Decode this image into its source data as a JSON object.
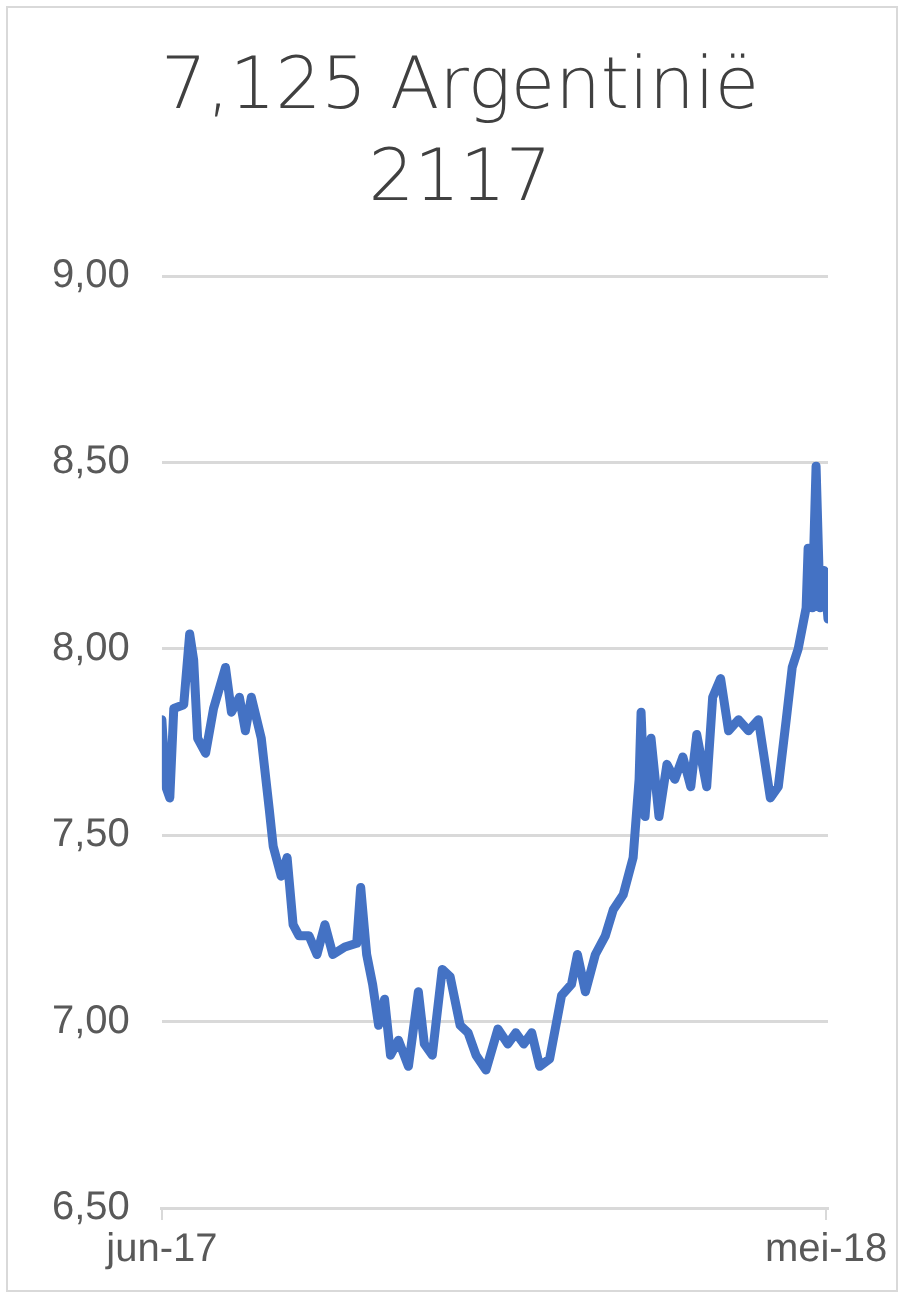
{
  "chart_data": {
    "type": "line",
    "title": "7,125 Argentinië 2117",
    "x": [
      "2017-06-01",
      "2017-06-03",
      "2017-06-05",
      "2017-06-07",
      "2017-06-12",
      "2017-06-15",
      "2017-06-17",
      "2017-06-19",
      "2017-06-23",
      "2017-06-27",
      "2017-07-03",
      "2017-07-06",
      "2017-07-10",
      "2017-07-13",
      "2017-07-16",
      "2017-07-21",
      "2017-07-25",
      "2017-07-27",
      "2017-07-31",
      "2017-08-03",
      "2017-08-06",
      "2017-08-09",
      "2017-08-14",
      "2017-08-18",
      "2017-08-22",
      "2017-08-26",
      "2017-09-01",
      "2017-09-07",
      "2017-09-09",
      "2017-09-12",
      "2017-09-15",
      "2017-09-18",
      "2017-09-21",
      "2017-09-24",
      "2017-09-28",
      "2017-10-03",
      "2017-10-08",
      "2017-10-11",
      "2017-10-15",
      "2017-10-20",
      "2017-10-24",
      "2017-10-29",
      "2017-11-02",
      "2017-11-06",
      "2017-11-11",
      "2017-11-17",
      "2017-11-22",
      "2017-11-26",
      "2017-11-30",
      "2017-12-04",
      "2017-12-08",
      "2017-12-13",
      "2017-12-19",
      "2017-12-24",
      "2017-12-27",
      "2017-12-31",
      "2018-01-05",
      "2018-01-10",
      "2018-01-14",
      "2018-01-19",
      "2018-01-24",
      "2018-01-27",
      "2018-01-28",
      "2018-01-30",
      "2018-02-02",
      "2018-02-06",
      "2018-02-10",
      "2018-02-14",
      "2018-02-18",
      "2018-02-22",
      "2018-02-25",
      "2018-03-02",
      "2018-03-05",
      "2018-03-09",
      "2018-03-13",
      "2018-03-18",
      "2018-03-23",
      "2018-03-28",
      "2018-04-03",
      "2018-04-07",
      "2018-04-11",
      "2018-04-14",
      "2018-04-17",
      "2018-04-21",
      "2018-04-22",
      "2018-04-24",
      "2018-04-26",
      "2018-04-28",
      "2018-04-30",
      "2018-05-02"
    ],
    "series": [
      {
        "color": "#4472c4",
        "values": [
          7.81,
          7.63,
          7.6,
          7.84,
          7.85,
          8.04,
          7.97,
          7.76,
          7.72,
          7.84,
          7.95,
          7.83,
          7.87,
          7.78,
          7.87,
          7.76,
          7.57,
          7.47,
          7.39,
          7.44,
          7.26,
          7.23,
          7.23,
          7.18,
          7.26,
          7.18,
          7.2,
          7.21,
          7.36,
          7.18,
          7.1,
          6.99,
          7.06,
          6.91,
          6.95,
          6.88,
          7.08,
          6.94,
          6.91,
          7.14,
          7.12,
          6.99,
          6.97,
          6.91,
          6.87,
          6.98,
          6.94,
          6.97,
          6.94,
          6.97,
          6.88,
          6.9,
          7.07,
          7.1,
          7.18,
          7.08,
          7.18,
          7.23,
          7.3,
          7.34,
          7.44,
          7.65,
          7.83,
          7.55,
          7.76,
          7.55,
          7.69,
          7.65,
          7.71,
          7.63,
          7.77,
          7.63,
          7.87,
          7.92,
          7.78,
          7.81,
          7.78,
          7.81,
          7.6,
          7.63,
          7.81,
          7.95,
          8.0,
          8.11,
          8.27,
          8.11,
          8.49,
          8.11,
          8.21,
          8.08
        ]
      }
    ],
    "xlim": [
      "2017-06-01",
      "2018-05-02"
    ],
    "xticks": [
      {
        "value": "2017-06-01",
        "label": "jun-17"
      },
      {
        "value": "2018-05-01",
        "label": "mei-18"
      }
    ],
    "ylim": [
      6.5,
      9
    ],
    "yticks": [
      {
        "value": 6.5,
        "label": "6,50"
      },
      {
        "value": 7,
        "label": "7,00"
      },
      {
        "value": 7.5,
        "label": "7,50"
      },
      {
        "value": 8,
        "label": "8,00"
      },
      {
        "value": 8.5,
        "label": "8,50"
      },
      {
        "value": 9,
        "label": "9,00"
      }
    ],
    "grid": "y",
    "legend": false,
    "marker": "none",
    "line_style": "solid"
  }
}
